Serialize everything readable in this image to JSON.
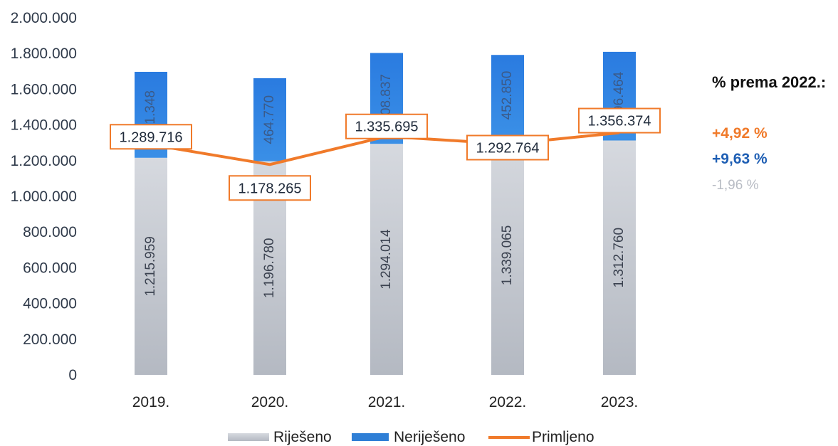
{
  "chart_data": {
    "type": "bar",
    "stacked": true,
    "categories": [
      "2019.",
      "2020.",
      "2021.",
      "2022.",
      "2023."
    ],
    "ylim": [
      0,
      2000000
    ],
    "yticks": [
      "0",
      "200.000",
      "400.000",
      "600.000",
      "800.000",
      "1.000.000",
      "1.200.000",
      "1.400.000",
      "1.600.000",
      "1.800.000",
      "2.000.000"
    ],
    "series": [
      {
        "name": "Riješeno",
        "kind": "bar",
        "color": "#c3c7cf",
        "values": [
          1215959,
          1196780,
          1294014,
          1339065,
          1312760
        ],
        "labels": [
          "1.215.959",
          "1.196.780",
          "1.294.014",
          "1.339.065",
          "1.312.760"
        ]
      },
      {
        "name": "Neriješeno",
        "kind": "bar",
        "color": "#2f7fd6",
        "values": [
          481348,
          464770,
          508837,
          452850,
          496464
        ],
        "labels": [
          "481.348",
          "464.770",
          "508.837",
          "452.850",
          "496.464"
        ]
      },
      {
        "name": "Primljeno",
        "kind": "line",
        "color": "#f07a2a",
        "values": [
          1289716,
          1178265,
          1335695,
          1292764,
          1356374
        ],
        "labels": [
          "1.289.716",
          "1.178.265",
          "1.335.695",
          "1.292.764",
          "1.356.374"
        ]
      }
    ],
    "legend_position": "bottom",
    "grid": false
  },
  "side_panel": {
    "title": "% prema 2022.:",
    "items": [
      {
        "text": "+4,92 %",
        "color": "#f07a2a"
      },
      {
        "text": "+9,63 %",
        "color": "#1f5fb4"
      },
      {
        "text": "-1,96 %",
        "color": "#b8bcc4"
      }
    ]
  }
}
